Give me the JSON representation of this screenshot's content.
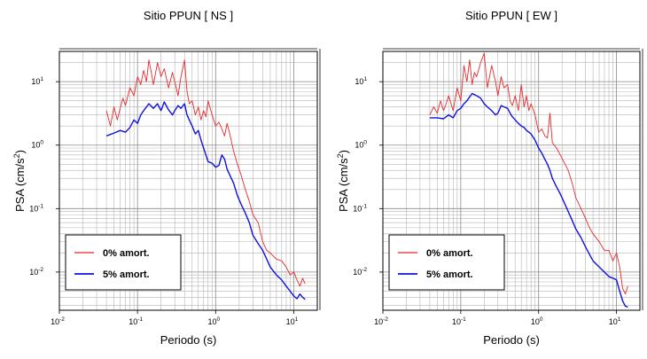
{
  "chart_data": [
    {
      "type": "line",
      "title": "Sitio PPUN [ NS ]",
      "xlabel": "Periodo (s)",
      "ylabel_base": "PSA (cm/s",
      "ylabel_exp": "2",
      "ylabel_end": ")",
      "x_scale": "log",
      "y_scale": "log",
      "xlim": [
        0.01,
        20
      ],
      "ylim": [
        0.0025,
        30
      ],
      "x_ticks": [
        {
          "base": "10",
          "exp": "-2",
          "value": 0.01
        },
        {
          "base": "10",
          "exp": "-1",
          "value": 0.1
        },
        {
          "base": "10",
          "exp": "0",
          "value": 1
        },
        {
          "base": "10",
          "exp": "1",
          "value": 10
        }
      ],
      "y_ticks": [
        {
          "base": "10",
          "exp": "-2",
          "value": 0.01
        },
        {
          "base": "10",
          "exp": "-1",
          "value": 0.1
        },
        {
          "base": "10",
          "exp": "0",
          "value": 1
        },
        {
          "base": "10",
          "exp": "1",
          "value": 10
        }
      ],
      "grid": true,
      "legend_position": "bottom-left",
      "series": [
        {
          "name": "0% amort.",
          "color": "#e8282b",
          "x": [
            0.04,
            0.045,
            0.05,
            0.055,
            0.06,
            0.065,
            0.07,
            0.08,
            0.09,
            0.1,
            0.11,
            0.12,
            0.13,
            0.14,
            0.15,
            0.16,
            0.18,
            0.2,
            0.22,
            0.25,
            0.28,
            0.3,
            0.33,
            0.36,
            0.4,
            0.43,
            0.46,
            0.5,
            0.55,
            0.6,
            0.65,
            0.7,
            0.75,
            0.8,
            0.9,
            1.0,
            1.1,
            1.2,
            1.3,
            1.4,
            1.5,
            1.7,
            1.9,
            2.1,
            2.4,
            2.7,
            3.0,
            3.5,
            4.0,
            4.5,
            5.0,
            6.0,
            7.0,
            8.0,
            9.0,
            10.0,
            11.0,
            12.0,
            13.0,
            14.0
          ],
          "y": [
            3.5,
            2.0,
            4.0,
            2.5,
            3.8,
            5.5,
            4.2,
            8.0,
            6.0,
            12.0,
            9.0,
            15.0,
            10.0,
            22.0,
            14.0,
            9.0,
            20.0,
            12.0,
            16.0,
            8.0,
            14.0,
            10.0,
            6.0,
            12.0,
            22.0,
            7.0,
            4.5,
            5.0,
            3.0,
            4.0,
            2.5,
            3.5,
            2.8,
            5.0,
            3.0,
            2.0,
            2.3,
            1.8,
            1.4,
            2.2,
            1.6,
            0.8,
            0.5,
            0.35,
            0.2,
            0.13,
            0.08,
            0.06,
            0.03,
            0.022,
            0.02,
            0.016,
            0.015,
            0.012,
            0.009,
            0.01,
            0.0075,
            0.006,
            0.008,
            0.0065
          ]
        },
        {
          "name": "5% amort.",
          "color": "#1010e0",
          "x": [
            0.04,
            0.05,
            0.06,
            0.07,
            0.08,
            0.09,
            0.1,
            0.11,
            0.12,
            0.14,
            0.16,
            0.18,
            0.2,
            0.22,
            0.25,
            0.28,
            0.3,
            0.33,
            0.36,
            0.4,
            0.43,
            0.46,
            0.5,
            0.55,
            0.6,
            0.65,
            0.7,
            0.75,
            0.8,
            0.9,
            1.0,
            1.1,
            1.2,
            1.3,
            1.4,
            1.5,
            1.7,
            1.9,
            2.1,
            2.4,
            2.7,
            3.0,
            3.5,
            4.0,
            4.5,
            5.0,
            6.0,
            7.0,
            8.0,
            9.0,
            10.0,
            11.0,
            12.0,
            13.0,
            14.0
          ],
          "y": [
            1.4,
            1.55,
            1.7,
            1.6,
            1.9,
            2.5,
            2.2,
            3.0,
            3.5,
            4.5,
            3.8,
            4.5,
            3.5,
            4.8,
            3.6,
            3.0,
            3.5,
            4.2,
            3.8,
            4.5,
            3.0,
            2.5,
            2.0,
            1.5,
            1.7,
            1.2,
            0.9,
            0.7,
            0.55,
            0.52,
            0.45,
            0.48,
            0.7,
            0.6,
            0.42,
            0.35,
            0.25,
            0.16,
            0.12,
            0.085,
            0.06,
            0.038,
            0.028,
            0.022,
            0.016,
            0.012,
            0.009,
            0.0075,
            0.006,
            0.005,
            0.0042,
            0.0038,
            0.0045,
            0.004,
            0.0037
          ]
        }
      ]
    },
    {
      "type": "line",
      "title": "Sitio PPUN [ EW ]",
      "xlabel": "Periodo (s)",
      "ylabel_base": "PSA (cm/s",
      "ylabel_exp": "2",
      "ylabel_end": ")",
      "x_scale": "log",
      "y_scale": "log",
      "xlim": [
        0.01,
        20
      ],
      "ylim": [
        0.0025,
        30
      ],
      "x_ticks": [
        {
          "base": "10",
          "exp": "-2",
          "value": 0.01
        },
        {
          "base": "10",
          "exp": "-1",
          "value": 0.1
        },
        {
          "base": "10",
          "exp": "0",
          "value": 1
        },
        {
          "base": "10",
          "exp": "1",
          "value": 10
        }
      ],
      "y_ticks": [
        {
          "base": "10",
          "exp": "-2",
          "value": 0.01
        },
        {
          "base": "10",
          "exp": "-1",
          "value": 0.1
        },
        {
          "base": "10",
          "exp": "0",
          "value": 1
        },
        {
          "base": "10",
          "exp": "1",
          "value": 10
        }
      ],
      "grid": true,
      "legend_position": "bottom-left",
      "series": [
        {
          "name": "0% amort.",
          "color": "#e8282b",
          "x": [
            0.04,
            0.045,
            0.05,
            0.055,
            0.06,
            0.065,
            0.07,
            0.08,
            0.09,
            0.1,
            0.11,
            0.12,
            0.13,
            0.14,
            0.15,
            0.16,
            0.18,
            0.2,
            0.22,
            0.25,
            0.28,
            0.3,
            0.33,
            0.36,
            0.4,
            0.43,
            0.46,
            0.5,
            0.55,
            0.6,
            0.65,
            0.7,
            0.75,
            0.8,
            0.9,
            1.0,
            1.1,
            1.2,
            1.3,
            1.4,
            1.5,
            1.7,
            1.9,
            2.1,
            2.4,
            2.7,
            3.0,
            3.5,
            4.0,
            4.5,
            5.0,
            6.0,
            7.0,
            8.0,
            9.0,
            10.0,
            11.0,
            12.0,
            13.0,
            14.0
          ],
          "y": [
            3.0,
            4.0,
            3.2,
            5.0,
            3.5,
            4.5,
            6.0,
            3.5,
            8.0,
            5.0,
            18.0,
            10.0,
            22.0,
            9.0,
            14.0,
            12.0,
            20.0,
            28.0,
            8.0,
            18.0,
            10.0,
            6.0,
            12.0,
            8.0,
            9.0,
            5.0,
            4.2,
            6.0,
            3.5,
            9.0,
            4.0,
            6.0,
            3.5,
            4.5,
            3.0,
            1.6,
            1.8,
            1.4,
            1.3,
            3.2,
            1.1,
            0.9,
            0.7,
            0.55,
            0.4,
            0.25,
            0.15,
            0.1,
            0.07,
            0.05,
            0.04,
            0.03,
            0.022,
            0.022,
            0.015,
            0.02,
            0.012,
            0.0055,
            0.0045,
            0.006
          ]
        },
        {
          "name": "5% amort.",
          "color": "#1010e0",
          "x": [
            0.04,
            0.05,
            0.06,
            0.07,
            0.08,
            0.09,
            0.1,
            0.11,
            0.12,
            0.14,
            0.16,
            0.18,
            0.2,
            0.22,
            0.25,
            0.28,
            0.3,
            0.33,
            0.36,
            0.4,
            0.43,
            0.46,
            0.5,
            0.55,
            0.6,
            0.65,
            0.7,
            0.75,
            0.8,
            0.9,
            1.0,
            1.1,
            1.2,
            1.3,
            1.4,
            1.5,
            1.7,
            1.9,
            2.1,
            2.4,
            2.7,
            3.0,
            3.5,
            4.0,
            4.5,
            5.0,
            6.0,
            7.0,
            8.0,
            9.0,
            10.0,
            11.0,
            12.0,
            13.0,
            14.0
          ],
          "y": [
            2.7,
            2.7,
            2.6,
            3.0,
            2.7,
            3.5,
            3.8,
            4.5,
            5.0,
            6.5,
            6.0,
            5.5,
            4.5,
            4.0,
            3.5,
            3.0,
            3.2,
            4.2,
            4.0,
            3.8,
            3.2,
            2.8,
            2.5,
            2.2,
            2.0,
            1.9,
            1.7,
            1.6,
            1.5,
            1.2,
            0.9,
            0.75,
            0.6,
            0.5,
            0.4,
            0.3,
            0.22,
            0.17,
            0.13,
            0.09,
            0.065,
            0.048,
            0.035,
            0.025,
            0.019,
            0.015,
            0.012,
            0.01,
            0.0085,
            0.008,
            0.0075,
            0.005,
            0.0035,
            0.0029,
            0.0028
          ]
        }
      ]
    }
  ]
}
